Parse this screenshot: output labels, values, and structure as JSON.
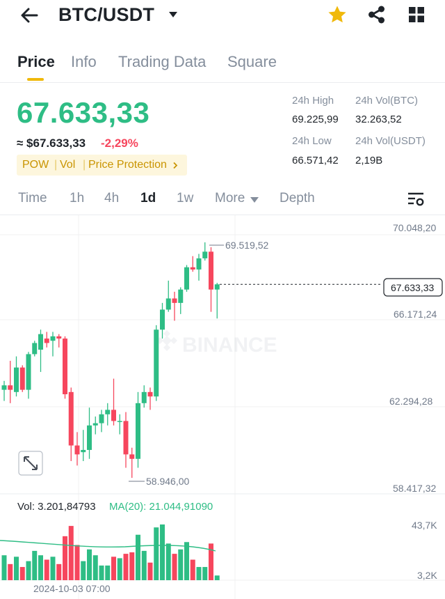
{
  "header": {
    "back_icon": "arrow-left-icon",
    "pair": "BTC/USDT",
    "caret_icon": "caret-down-icon",
    "favorite_icon": "star-icon",
    "share_icon": "share-icon",
    "more_icon": "grid-icon",
    "favorite_color": "#f0b90b"
  },
  "tabs": [
    {
      "label": "Price",
      "active": true
    },
    {
      "label": "Info",
      "active": false
    },
    {
      "label": "Trading Data",
      "active": false
    },
    {
      "label": "Square",
      "active": false
    }
  ],
  "ticker": {
    "last_price": "67.633,33",
    "fiat_price": "≈ $67.633,33",
    "change": "-2,29%",
    "tags": [
      "POW",
      "Vol",
      "Price Protection"
    ],
    "high_label": "24h High",
    "high_value": "69.225,99",
    "low_label": "24h Low",
    "low_value": "66.571,42",
    "vol_btc_label": "24h Vol(BTC)",
    "vol_btc_value": "32.263,52",
    "vol_usdt_label": "24h Vol(USDT)",
    "vol_usdt_value": "2,19B"
  },
  "intervals": [
    {
      "label": "Time",
      "active": false
    },
    {
      "label": "1h",
      "active": false
    },
    {
      "label": "4h",
      "active": false
    },
    {
      "label": "1d",
      "active": true
    },
    {
      "label": "1w",
      "active": false
    },
    {
      "label": "More",
      "active": false
    },
    {
      "label": "Depth",
      "active": false
    }
  ],
  "colors": {
    "up": "#2ebd85",
    "down": "#f6465d",
    "accent": "#f0b90b",
    "muted": "#848e9c"
  },
  "chart_data": {
    "type": "candlestick",
    "watermark": "BINANCE",
    "price_axis_labels": [
      "70.048,20",
      "66.171,24",
      "62.294,28",
      "58.417,32"
    ],
    "current_price_label": "67.633,33",
    "high_marker": "69.519,52",
    "low_marker": "58.946,00",
    "volume_label": "Vol: 3.201,84793",
    "ma_label": "MA(20): 21.044,91090",
    "volume_axis_labels": [
      "43,7K",
      "3,2K"
    ],
    "time_label": "2024-10-03 07:00",
    "ylim": [
      58417.32,
      70048.2
    ],
    "candles": [
      {
        "o": 62900,
        "h": 63300,
        "l": 62400,
        "c": 63100
      },
      {
        "o": 63100,
        "h": 64200,
        "l": 62300,
        "c": 62900
      },
      {
        "o": 62800,
        "h": 64400,
        "l": 62600,
        "c": 63900
      },
      {
        "o": 63900,
        "h": 64000,
        "l": 62800,
        "c": 62900
      },
      {
        "o": 62900,
        "h": 64600,
        "l": 62500,
        "c": 64500
      },
      {
        "o": 64500,
        "h": 65100,
        "l": 64400,
        "c": 65000
      },
      {
        "o": 64700,
        "h": 65600,
        "l": 63700,
        "c": 65400
      },
      {
        "o": 65200,
        "h": 65500,
        "l": 64800,
        "c": 65000
      },
      {
        "o": 65100,
        "h": 65500,
        "l": 64400,
        "c": 65300
      },
      {
        "o": 65300,
        "h": 65400,
        "l": 64800,
        "c": 65200
      },
      {
        "o": 65200,
        "h": 65300,
        "l": 62500,
        "c": 62700
      },
      {
        "o": 62800,
        "h": 63000,
        "l": 59700,
        "c": 60400
      },
      {
        "o": 60400,
        "h": 61000,
        "l": 59500,
        "c": 60000
      },
      {
        "o": 60100,
        "h": 61100,
        "l": 59700,
        "c": 60200
      },
      {
        "o": 60200,
        "h": 62100,
        "l": 59800,
        "c": 61300
      },
      {
        "o": 61300,
        "h": 61700,
        "l": 60900,
        "c": 61400
      },
      {
        "o": 61400,
        "h": 62000,
        "l": 61000,
        "c": 61800
      },
      {
        "o": 61800,
        "h": 62300,
        "l": 61300,
        "c": 62000
      },
      {
        "o": 62000,
        "h": 63400,
        "l": 61300,
        "c": 61500
      },
      {
        "o": 61500,
        "h": 61800,
        "l": 60900,
        "c": 61500
      },
      {
        "o": 61500,
        "h": 61900,
        "l": 59400,
        "c": 60000
      },
      {
        "o": 60000,
        "h": 60300,
        "l": 58946,
        "c": 59800
      },
      {
        "o": 59800,
        "h": 62800,
        "l": 59400,
        "c": 62300
      },
      {
        "o": 62300,
        "h": 63100,
        "l": 62100,
        "c": 62800
      },
      {
        "o": 62800,
        "h": 63000,
        "l": 62000,
        "c": 62600
      },
      {
        "o": 62600,
        "h": 65800,
        "l": 62400,
        "c": 65600
      },
      {
        "o": 65600,
        "h": 66800,
        "l": 65200,
        "c": 66500
      },
      {
        "o": 66500,
        "h": 67800,
        "l": 66400,
        "c": 67000
      },
      {
        "o": 67000,
        "h": 67300,
        "l": 66000,
        "c": 66800
      },
      {
        "o": 66800,
        "h": 67500,
        "l": 66300,
        "c": 67400
      },
      {
        "o": 67400,
        "h": 68500,
        "l": 67300,
        "c": 68400
      },
      {
        "o": 68400,
        "h": 68900,
        "l": 68200,
        "c": 68300
      },
      {
        "o": 68300,
        "h": 69000,
        "l": 67800,
        "c": 68800
      },
      {
        "o": 68800,
        "h": 69519.52,
        "l": 68700,
        "c": 69100
      },
      {
        "o": 69100,
        "h": 69300,
        "l": 66400,
        "c": 67400
      },
      {
        "o": 67400,
        "h": 67700,
        "l": 66100,
        "c": 67633.33
      }
    ],
    "volumes": [
      17000,
      11000,
      16000,
      9000,
      13000,
      20000,
      17000,
      14000,
      16000,
      11000,
      30000,
      37000,
      24000,
      13000,
      21000,
      17000,
      10000,
      10000,
      16000,
      15000,
      18000,
      19000,
      31000,
      20000,
      12000,
      36000,
      38000,
      25000,
      18000,
      21000,
      26000,
      14000,
      9000,
      9000,
      25000,
      3201.84793
    ]
  }
}
